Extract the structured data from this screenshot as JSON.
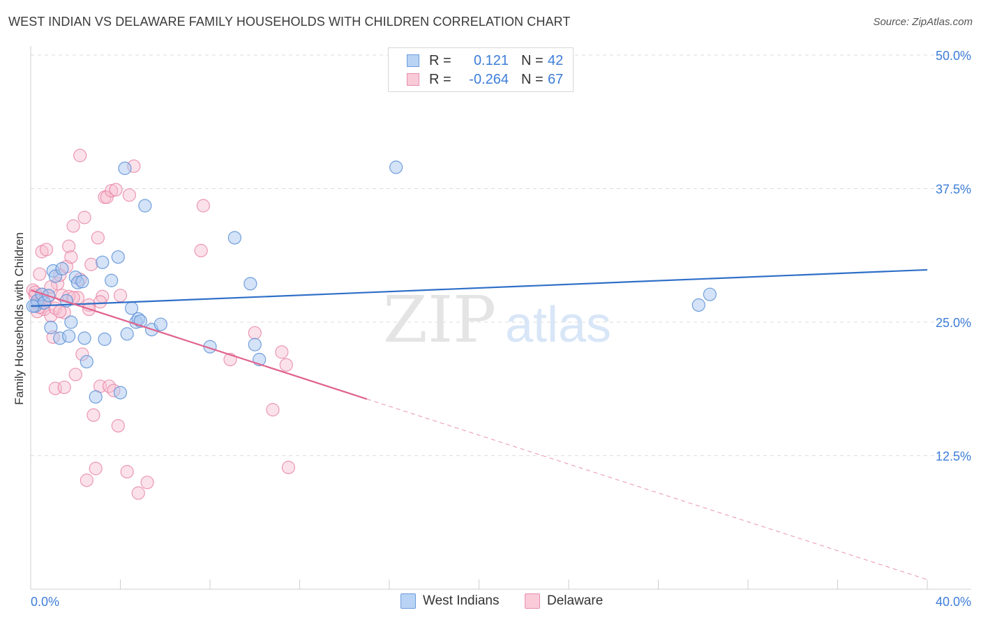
{
  "header": {
    "title": "WEST INDIAN VS DELAWARE FAMILY HOUSEHOLDS WITH CHILDREN CORRELATION CHART",
    "source": "Source: ZipAtlas.com"
  },
  "legend": {
    "rows": [
      {
        "r_label": "R =",
        "r_value": "0.121",
        "n_label": "N =",
        "n_value": "42"
      },
      {
        "r_label": "R =",
        "r_value": "-0.264",
        "n_label": "N =",
        "n_value": "67"
      }
    ]
  },
  "bottom_legend": {
    "items": [
      {
        "label": "West Indians"
      },
      {
        "label": "Delaware"
      }
    ]
  },
  "watermark": {
    "zip": "ZIP",
    "atlas": "atlas"
  },
  "colors": {
    "blue_fill": "#a9c8f0",
    "blue_stroke": "#5b8fd6",
    "blue_line": "#2f6fc8",
    "pink_fill": "#f6bfd0",
    "pink_stroke": "#e77fa2",
    "pink_line": "#e0628d",
    "axis_text": "#3d7dd8",
    "grid": "#dcdcdc"
  },
  "chart_data": {
    "type": "scatter",
    "title": "WEST INDIAN VS DELAWARE FAMILY HOUSEHOLDS WITH CHILDREN CORRELATION CHART",
    "xlabel": "",
    "ylabel": "Family Households with Children",
    "xlim": [
      0,
      40
    ],
    "ylim": [
      0,
      50
    ],
    "x_tick_labels": [
      "0.0%",
      "40.0%"
    ],
    "y_ticks": [
      12.5,
      25.0,
      37.5,
      50.0
    ],
    "y_tick_labels": [
      "12.5%",
      "25.0%",
      "37.5%",
      "50.0%"
    ],
    "series": [
      {
        "name": "West Indians",
        "points": [
          [
            0.2,
            26.5
          ],
          [
            0.3,
            27.0
          ],
          [
            0.5,
            27.6
          ],
          [
            0.6,
            26.8
          ],
          [
            0.8,
            27.5
          ],
          [
            0.9,
            24.5
          ],
          [
            1.0,
            29.8
          ],
          [
            1.1,
            29.3
          ],
          [
            1.3,
            23.5
          ],
          [
            1.4,
            30.0
          ],
          [
            1.6,
            27.0
          ],
          [
            1.7,
            23.7
          ],
          [
            1.8,
            25.0
          ],
          [
            2.0,
            29.2
          ],
          [
            2.1,
            28.7
          ],
          [
            2.3,
            28.8
          ],
          [
            2.4,
            23.5
          ],
          [
            2.5,
            21.3
          ],
          [
            2.9,
            18.0
          ],
          [
            3.2,
            30.6
          ],
          [
            3.3,
            23.4
          ],
          [
            3.6,
            28.9
          ],
          [
            3.9,
            31.1
          ],
          [
            4.0,
            18.4
          ],
          [
            4.2,
            39.4
          ],
          [
            4.3,
            23.9
          ],
          [
            4.5,
            26.3
          ],
          [
            4.7,
            25.0
          ],
          [
            4.8,
            25.3
          ],
          [
            4.9,
            25.1
          ],
          [
            5.1,
            35.9
          ],
          [
            5.4,
            24.3
          ],
          [
            5.8,
            24.8
          ],
          [
            8.0,
            22.7
          ],
          [
            9.1,
            32.9
          ],
          [
            9.8,
            28.6
          ],
          [
            10.0,
            22.9
          ],
          [
            10.2,
            21.5
          ],
          [
            16.3,
            39.5
          ],
          [
            29.8,
            26.6
          ],
          [
            30.3,
            27.6
          ],
          [
            0.1,
            26.5
          ]
        ],
        "trend": {
          "x": [
            0,
            40
          ],
          "y": [
            26.5,
            29.9
          ]
        }
      },
      {
        "name": "Delaware",
        "points": [
          [
            0.1,
            28.0
          ],
          [
            0.2,
            27.5
          ],
          [
            0.3,
            26.8
          ],
          [
            0.4,
            29.5
          ],
          [
            0.5,
            31.6
          ],
          [
            0.6,
            26.2
          ],
          [
            0.7,
            31.8
          ],
          [
            0.8,
            27.4
          ],
          [
            0.9,
            25.6
          ],
          [
            1.0,
            23.6
          ],
          [
            1.1,
            18.8
          ],
          [
            1.2,
            28.6
          ],
          [
            1.3,
            29.4
          ],
          [
            1.4,
            27.5
          ],
          [
            1.5,
            18.9
          ],
          [
            1.6,
            30.2
          ],
          [
            1.7,
            32.1
          ],
          [
            1.8,
            31.1
          ],
          [
            1.9,
            34.0
          ],
          [
            2.0,
            20.1
          ],
          [
            2.1,
            27.3
          ],
          [
            2.2,
            40.6
          ],
          [
            2.3,
            22.0
          ],
          [
            2.4,
            34.8
          ],
          [
            2.5,
            10.2
          ],
          [
            2.6,
            26.6
          ],
          [
            2.7,
            30.4
          ],
          [
            2.8,
            16.3
          ],
          [
            2.9,
            11.3
          ],
          [
            3.0,
            32.9
          ],
          [
            3.1,
            19.0
          ],
          [
            3.2,
            27.4
          ],
          [
            3.3,
            36.7
          ],
          [
            3.4,
            36.7
          ],
          [
            3.5,
            19.0
          ],
          [
            3.6,
            37.3
          ],
          [
            3.7,
            18.6
          ],
          [
            3.8,
            37.4
          ],
          [
            3.9,
            15.3
          ],
          [
            4.0,
            27.5
          ],
          [
            4.3,
            11.0
          ],
          [
            4.4,
            36.9
          ],
          [
            4.6,
            39.6
          ],
          [
            4.8,
            9.0
          ],
          [
            5.2,
            10.0
          ],
          [
            7.6,
            31.7
          ],
          [
            7.7,
            35.9
          ],
          [
            8.9,
            21.5
          ],
          [
            10.0,
            24.0
          ],
          [
            10.8,
            16.8
          ],
          [
            11.2,
            22.2
          ],
          [
            11.4,
            21.0
          ],
          [
            11.5,
            11.4
          ],
          [
            0.5,
            27.6
          ],
          [
            1.1,
            26.3
          ],
          [
            1.5,
            25.9
          ],
          [
            2.2,
            29.0
          ],
          [
            0.3,
            26.0
          ],
          [
            0.9,
            28.3
          ],
          [
            1.7,
            27.4
          ],
          [
            2.6,
            26.2
          ],
          [
            0.6,
            26.9
          ],
          [
            1.3,
            26.0
          ],
          [
            0.2,
            27.8
          ],
          [
            1.9,
            27.3
          ],
          [
            3.1,
            26.9
          ],
          [
            0.4,
            26.4
          ]
        ],
        "trend_solid": {
          "x": [
            0,
            15
          ],
          "y": [
            28.0,
            17.8
          ]
        },
        "trend_dashed": {
          "x": [
            15,
            40
          ],
          "y": [
            17.8,
            0.9
          ]
        }
      }
    ]
  }
}
